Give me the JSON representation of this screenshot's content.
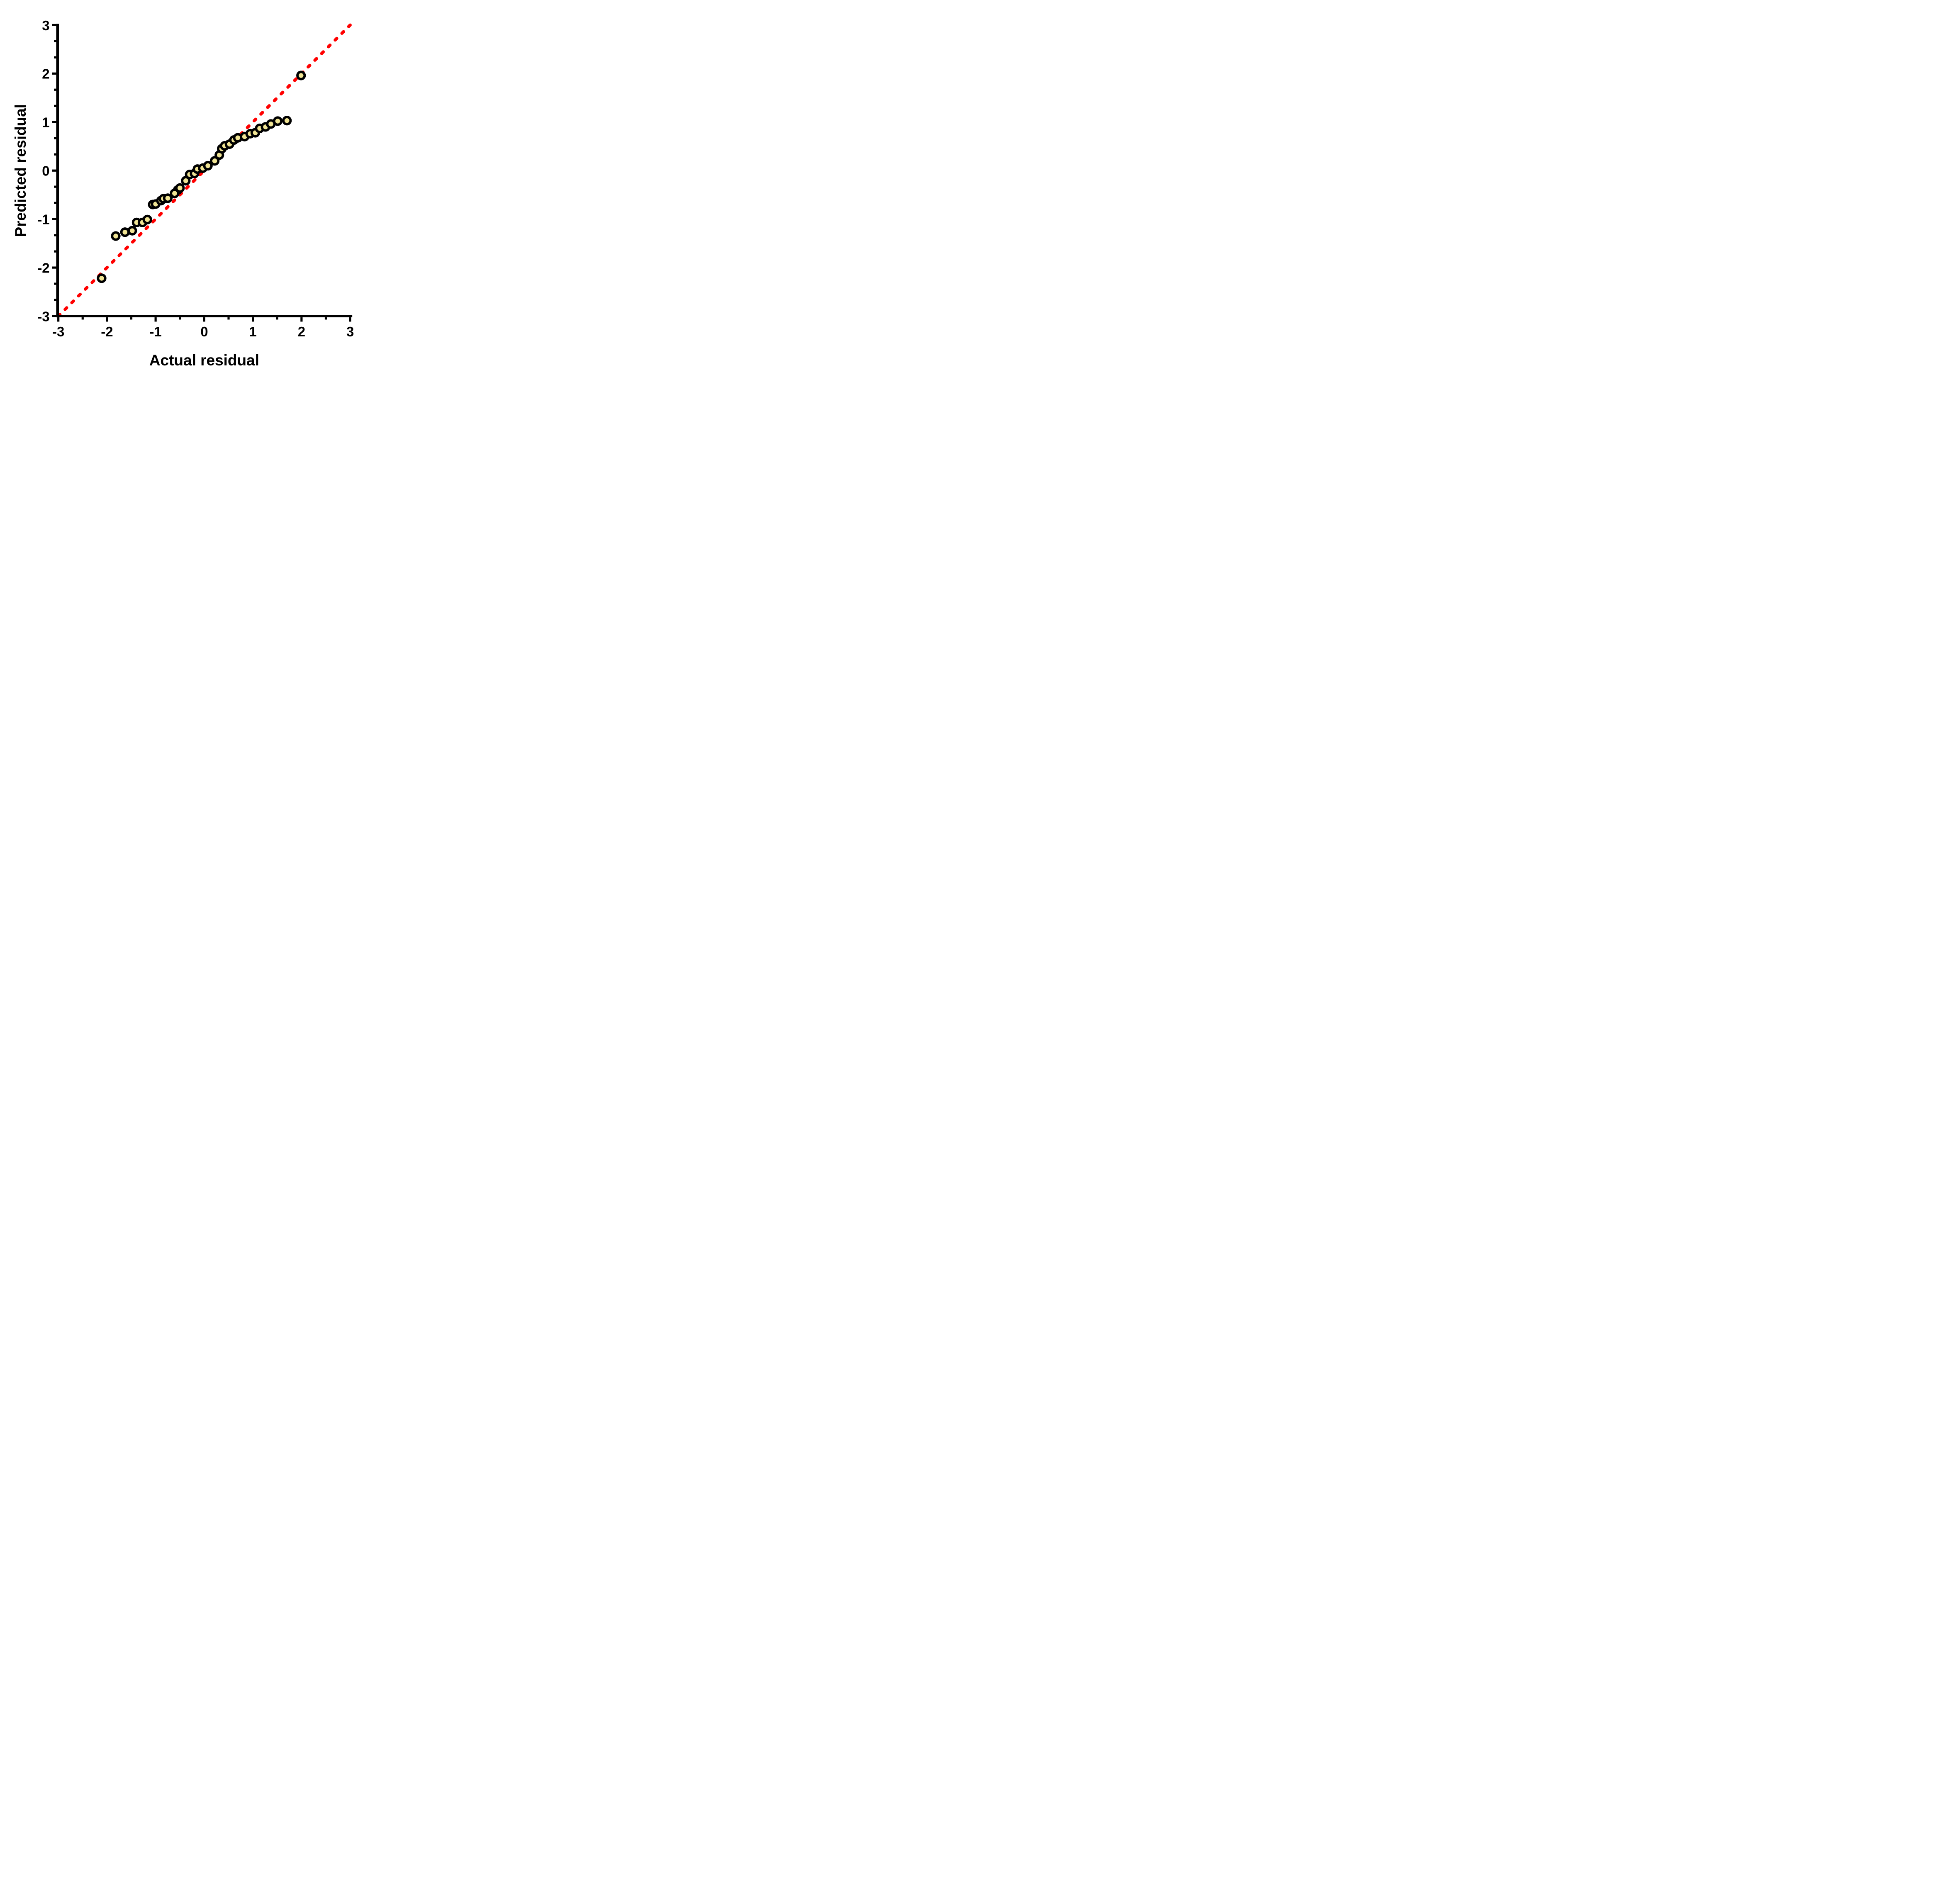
{
  "chart_data": {
    "type": "scatter",
    "title": "",
    "xlabel": "Actual residual",
    "ylabel": "Predicted residual",
    "xlim": [
      -3,
      3
    ],
    "ylim": [
      -3,
      3
    ],
    "grid": false,
    "legend": false,
    "x_major_ticks": [
      -3,
      -2,
      -1,
      0,
      1,
      2,
      3
    ],
    "x_minor_ticks": [
      -2.5,
      -1.5,
      -0.5,
      0.5,
      1.5,
      2.5
    ],
    "y_major_ticks": [
      3,
      2,
      1,
      0,
      -1,
      -2,
      -3
    ],
    "y_minor_ticks": [
      2.667,
      2.333,
      1.667,
      1.333,
      0.667,
      0.333,
      -0.333,
      -0.667,
      -1.333,
      -1.667,
      -2.333,
      -2.667
    ],
    "identity_line": {
      "from": [
        -3,
        -3
      ],
      "to": [
        3,
        3
      ],
      "style": "dashed",
      "color": "#FF0000"
    },
    "series": [
      {
        "name": "residual-qq-points",
        "marker": {
          "shape": "circle",
          "fill": "#F0E494",
          "stroke": "#000000"
        },
        "points": [
          [
            -2.11,
            -2.22
          ],
          [
            -1.82,
            -1.35
          ],
          [
            -1.63,
            -1.27
          ],
          [
            -1.48,
            -1.24
          ],
          [
            -1.39,
            -1.07
          ],
          [
            -1.27,
            -1.07
          ],
          [
            -1.17,
            -1.01
          ],
          [
            -1.06,
            -0.7
          ],
          [
            -1.0,
            -0.69
          ],
          [
            -0.89,
            -0.62
          ],
          [
            -0.84,
            -0.58
          ],
          [
            -0.75,
            -0.57
          ],
          [
            -0.545,
            -0.4
          ],
          [
            -0.5,
            -0.36
          ],
          [
            -0.61,
            -0.47
          ],
          [
            -0.38,
            -0.21
          ],
          [
            -0.3,
            -0.08
          ],
          [
            -0.2,
            -0.06
          ],
          [
            -0.14,
            0.03
          ],
          [
            -0.03,
            0.05
          ],
          [
            0.075,
            0.1
          ],
          [
            0.215,
            0.2
          ],
          [
            0.31,
            0.32
          ],
          [
            0.36,
            0.45
          ],
          [
            0.42,
            0.51
          ],
          [
            0.52,
            0.545
          ],
          [
            0.61,
            0.63
          ],
          [
            0.69,
            0.675
          ],
          [
            0.83,
            0.7
          ],
          [
            0.945,
            0.76
          ],
          [
            1.05,
            0.78
          ],
          [
            1.14,
            0.87
          ],
          [
            1.26,
            0.9
          ],
          [
            1.37,
            0.96
          ],
          [
            1.51,
            1.02
          ],
          [
            1.7,
            1.03
          ],
          [
            1.99,
            1.96
          ]
        ]
      }
    ],
    "colors": {
      "marker_fill": "#F0E494",
      "marker_stroke": "#000000",
      "line": "#FF0000",
      "axis": "#000000",
      "background": "#FFFFFF"
    }
  }
}
